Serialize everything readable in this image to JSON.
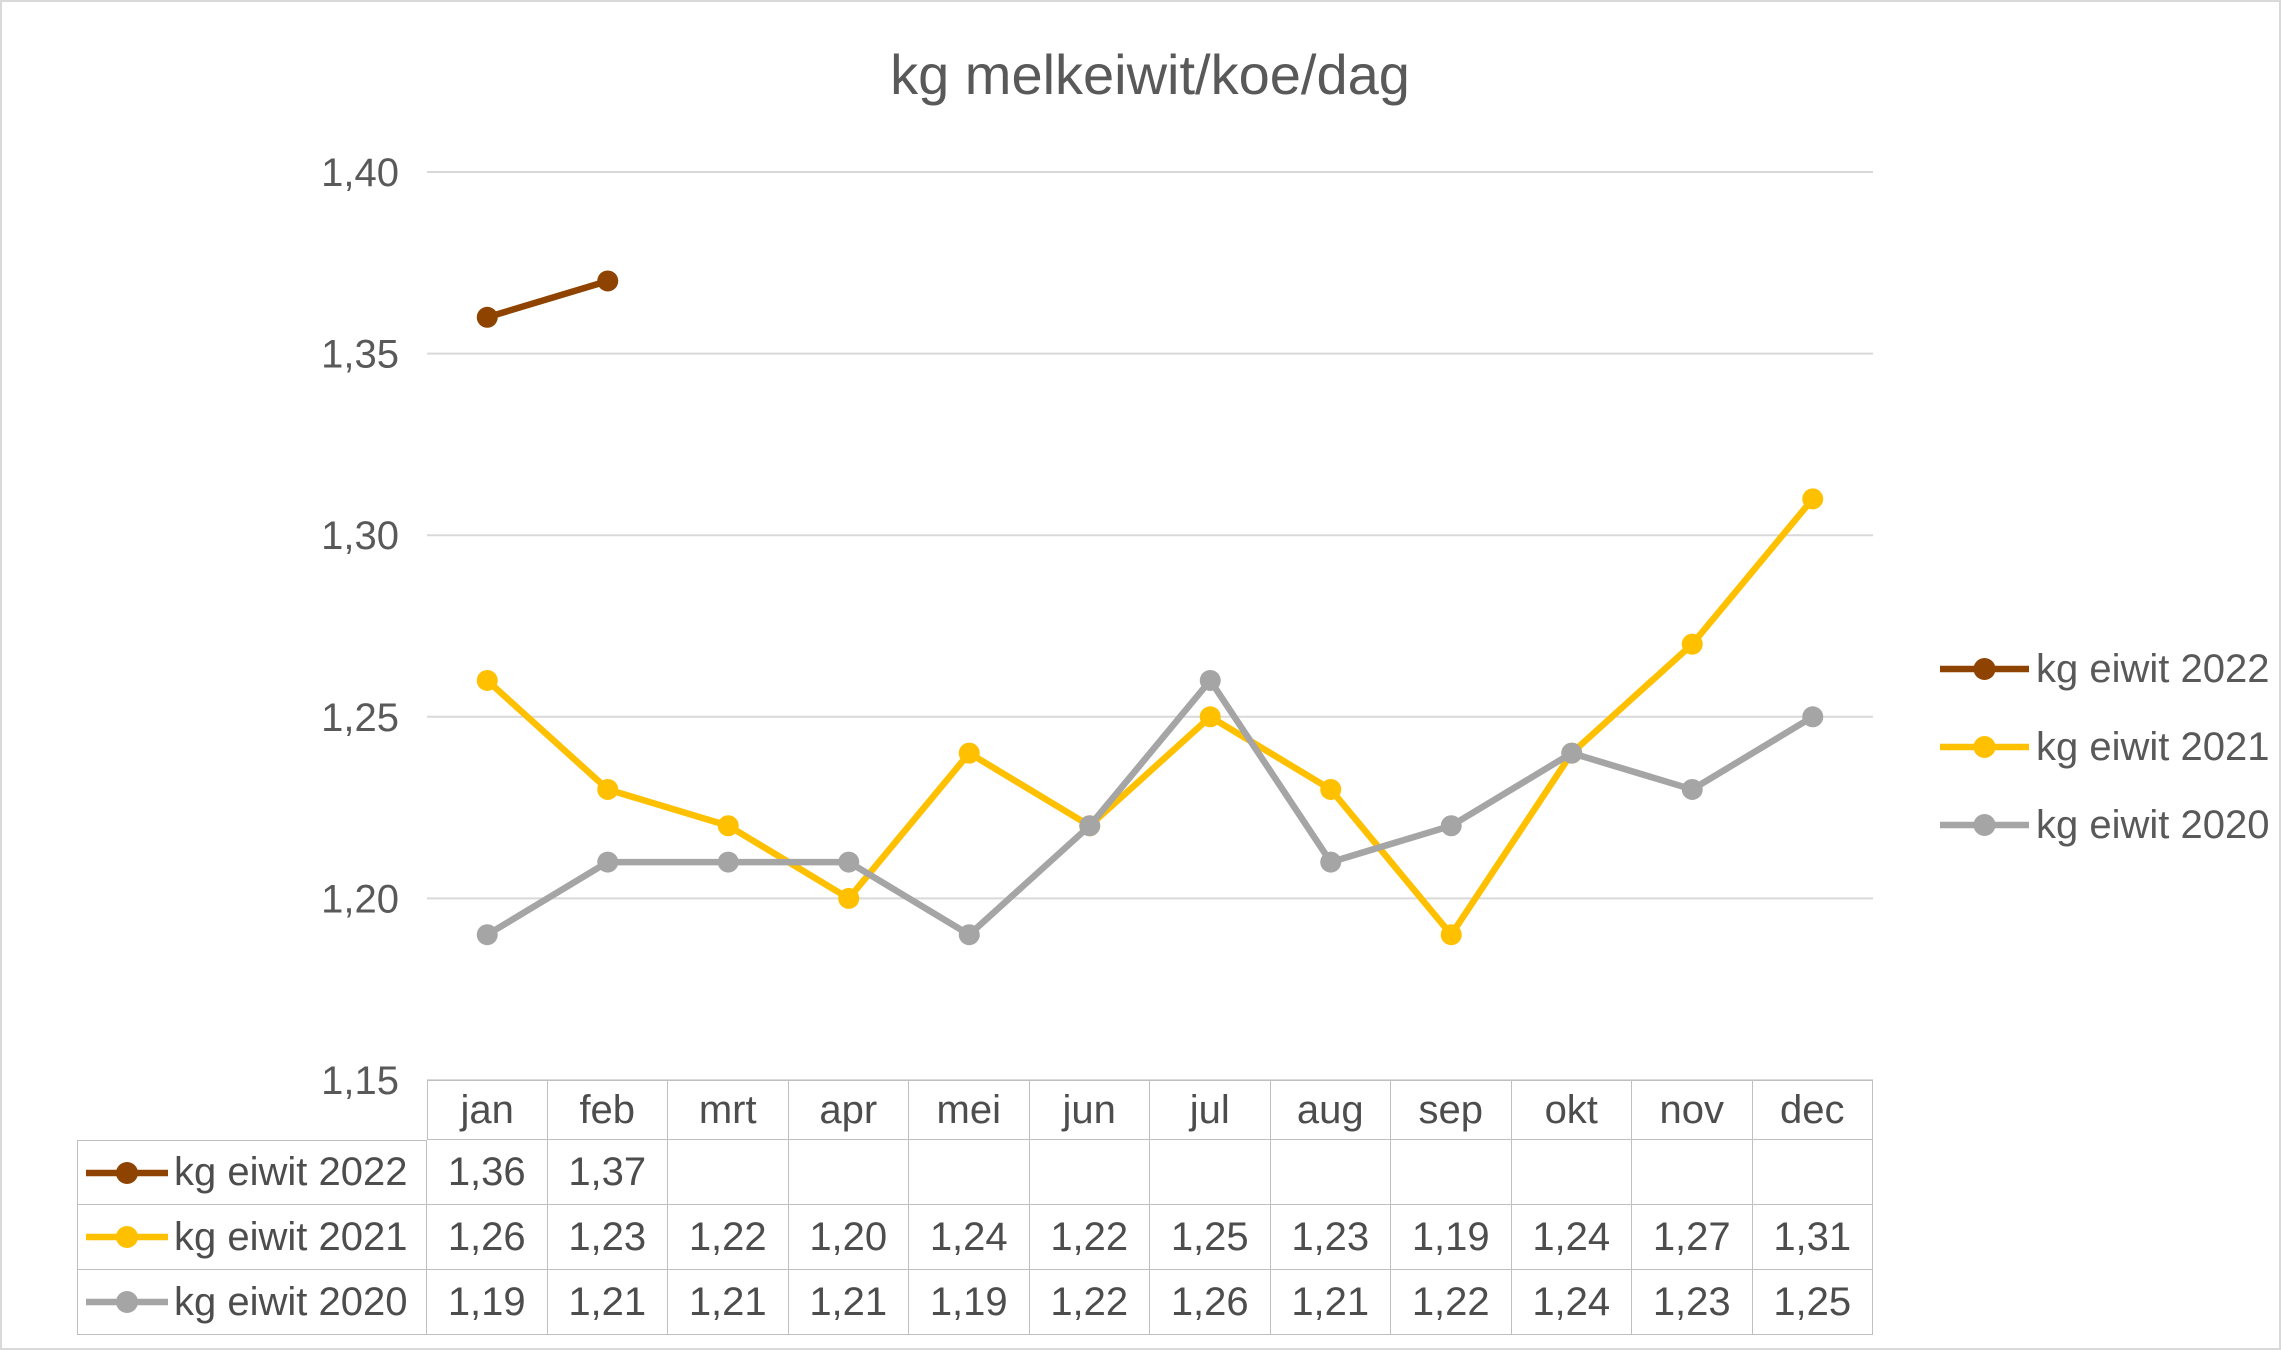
{
  "chart_data": {
    "type": "line",
    "title": "kg melkeiwit/koe/dag",
    "categories": [
      "jan",
      "feb",
      "mrt",
      "apr",
      "mei",
      "jun",
      "jul",
      "aug",
      "sep",
      "okt",
      "nov",
      "dec"
    ],
    "series": [
      {
        "name": "kg eiwit 2022",
        "color": "#8F4300",
        "values": [
          1.36,
          1.37,
          null,
          null,
          null,
          null,
          null,
          null,
          null,
          null,
          null,
          null
        ]
      },
      {
        "name": "kg eiwit 2021",
        "color": "#FFC000",
        "values": [
          1.26,
          1.23,
          1.22,
          1.2,
          1.24,
          1.22,
          1.25,
          1.23,
          1.19,
          1.24,
          1.27,
          1.31
        ]
      },
      {
        "name": "kg eiwit 2020",
        "color": "#A5A5A5",
        "values": [
          1.19,
          1.21,
          1.21,
          1.21,
          1.19,
          1.22,
          1.26,
          1.21,
          1.22,
          1.24,
          1.23,
          1.25
        ]
      }
    ],
    "ylim": [
      1.15,
      1.4
    ],
    "yticks": {
      "values": [
        1.4,
        1.35,
        1.3,
        1.25,
        1.2,
        1.15
      ],
      "labels": [
        "1,40",
        "1,35",
        "1,30",
        "1,25",
        "1,20",
        "1,15"
      ]
    },
    "grid": true,
    "legend_position": "right",
    "colors": {
      "grid": "#D9D9D9",
      "text": "#595959",
      "table_border": "#BFBFBF"
    },
    "table": {
      "rows": [
        {
          "label": "kg eiwit 2022",
          "cells": [
            "1,36",
            "1,37",
            "",
            "",
            "",
            "",
            "",
            "",
            "",
            "",
            "",
            ""
          ]
        },
        {
          "label": "kg eiwit 2021",
          "cells": [
            "1,26",
            "1,23",
            "1,22",
            "1,20",
            "1,24",
            "1,22",
            "1,25",
            "1,23",
            "1,19",
            "1,24",
            "1,27",
            "1,31"
          ]
        },
        {
          "label": "kg eiwit 2020",
          "cells": [
            "1,19",
            "1,21",
            "1,21",
            "1,21",
            "1,19",
            "1,22",
            "1,26",
            "1,21",
            "1,22",
            "1,24",
            "1,23",
            "1,25"
          ]
        }
      ]
    }
  }
}
